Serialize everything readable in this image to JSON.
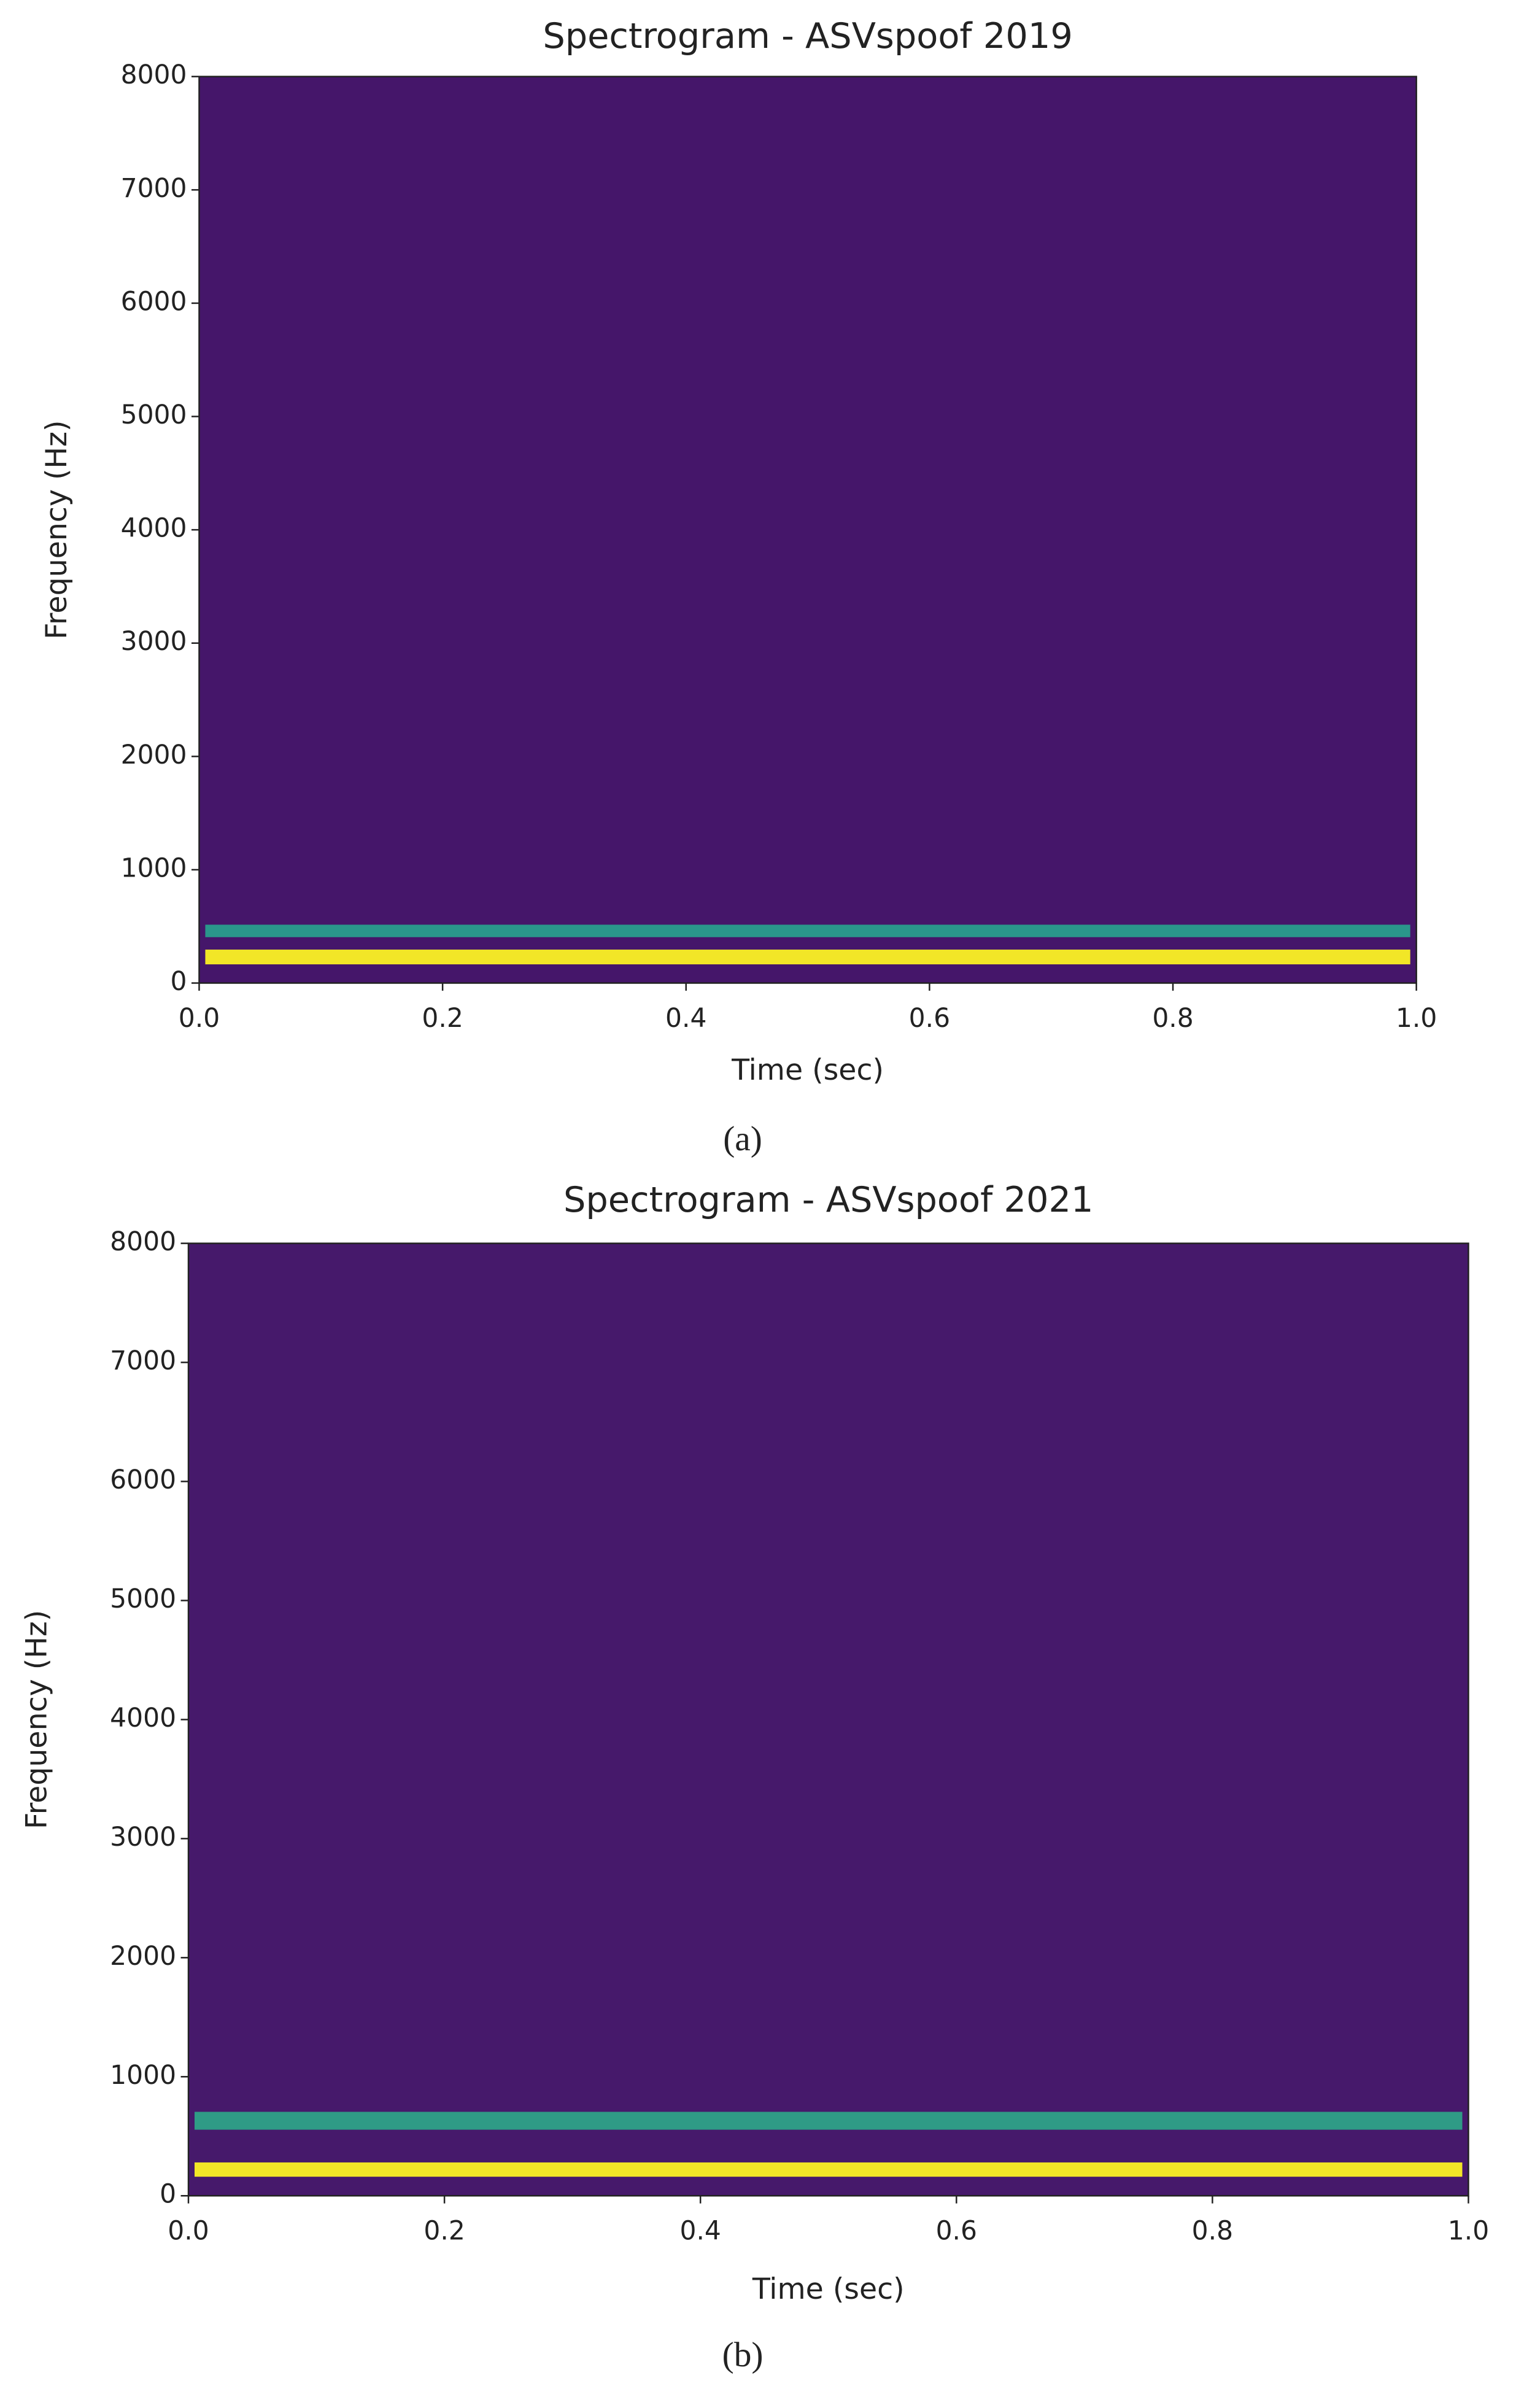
{
  "chart_data": [
    {
      "type": "spectrogram",
      "title": "Spectrogram - ASVspoof 2019",
      "x_label": "Time (sec)",
      "y_label": "Frequency (Hz)",
      "xlim": [
        0,
        1
      ],
      "ylim": [
        0,
        8000
      ],
      "xticks": [
        {
          "value": 0,
          "label": "0.0"
        },
        {
          "value": 0.2,
          "label": "0.2"
        },
        {
          "value": 0.4,
          "label": "0.4"
        },
        {
          "value": 0.6,
          "label": "0.6"
        },
        {
          "value": 0.8,
          "label": "0.8"
        },
        {
          "value": 1,
          "label": "1.0"
        }
      ],
      "yticks": [
        0,
        1000,
        2000,
        3000,
        4000,
        5000,
        6000,
        7000,
        8000
      ],
      "background": "#45166a",
      "bands": [
        {
          "frequency": 230,
          "width": 130,
          "color": "#f2e627"
        },
        {
          "frequency": 460,
          "width": 110,
          "color": "#2a968b"
        }
      ],
      "caption": "(a)"
    },
    {
      "type": "spectrogram",
      "title": "Spectrogram - ASVspoof 2021",
      "x_label": "Time (sec)",
      "y_label": "Frequency (Hz)",
      "xlim": [
        0,
        1
      ],
      "ylim": [
        0,
        8000
      ],
      "xticks": [
        {
          "value": 0,
          "label": "0.0"
        },
        {
          "value": 0.2,
          "label": "0.2"
        },
        {
          "value": 0.4,
          "label": "0.4"
        },
        {
          "value": 0.6,
          "label": "0.6"
        },
        {
          "value": 0.8,
          "label": "0.8"
        },
        {
          "value": 1,
          "label": "1.0"
        }
      ],
      "yticks": [
        0,
        1000,
        2000,
        3000,
        4000,
        5000,
        6000,
        7000,
        8000
      ],
      "background": "#46196b",
      "bands": [
        {
          "frequency": 220,
          "width": 120,
          "color": "#f2e627"
        },
        {
          "frequency": 630,
          "width": 150,
          "color": "#2f9b86"
        }
      ],
      "caption": "(b)"
    }
  ]
}
